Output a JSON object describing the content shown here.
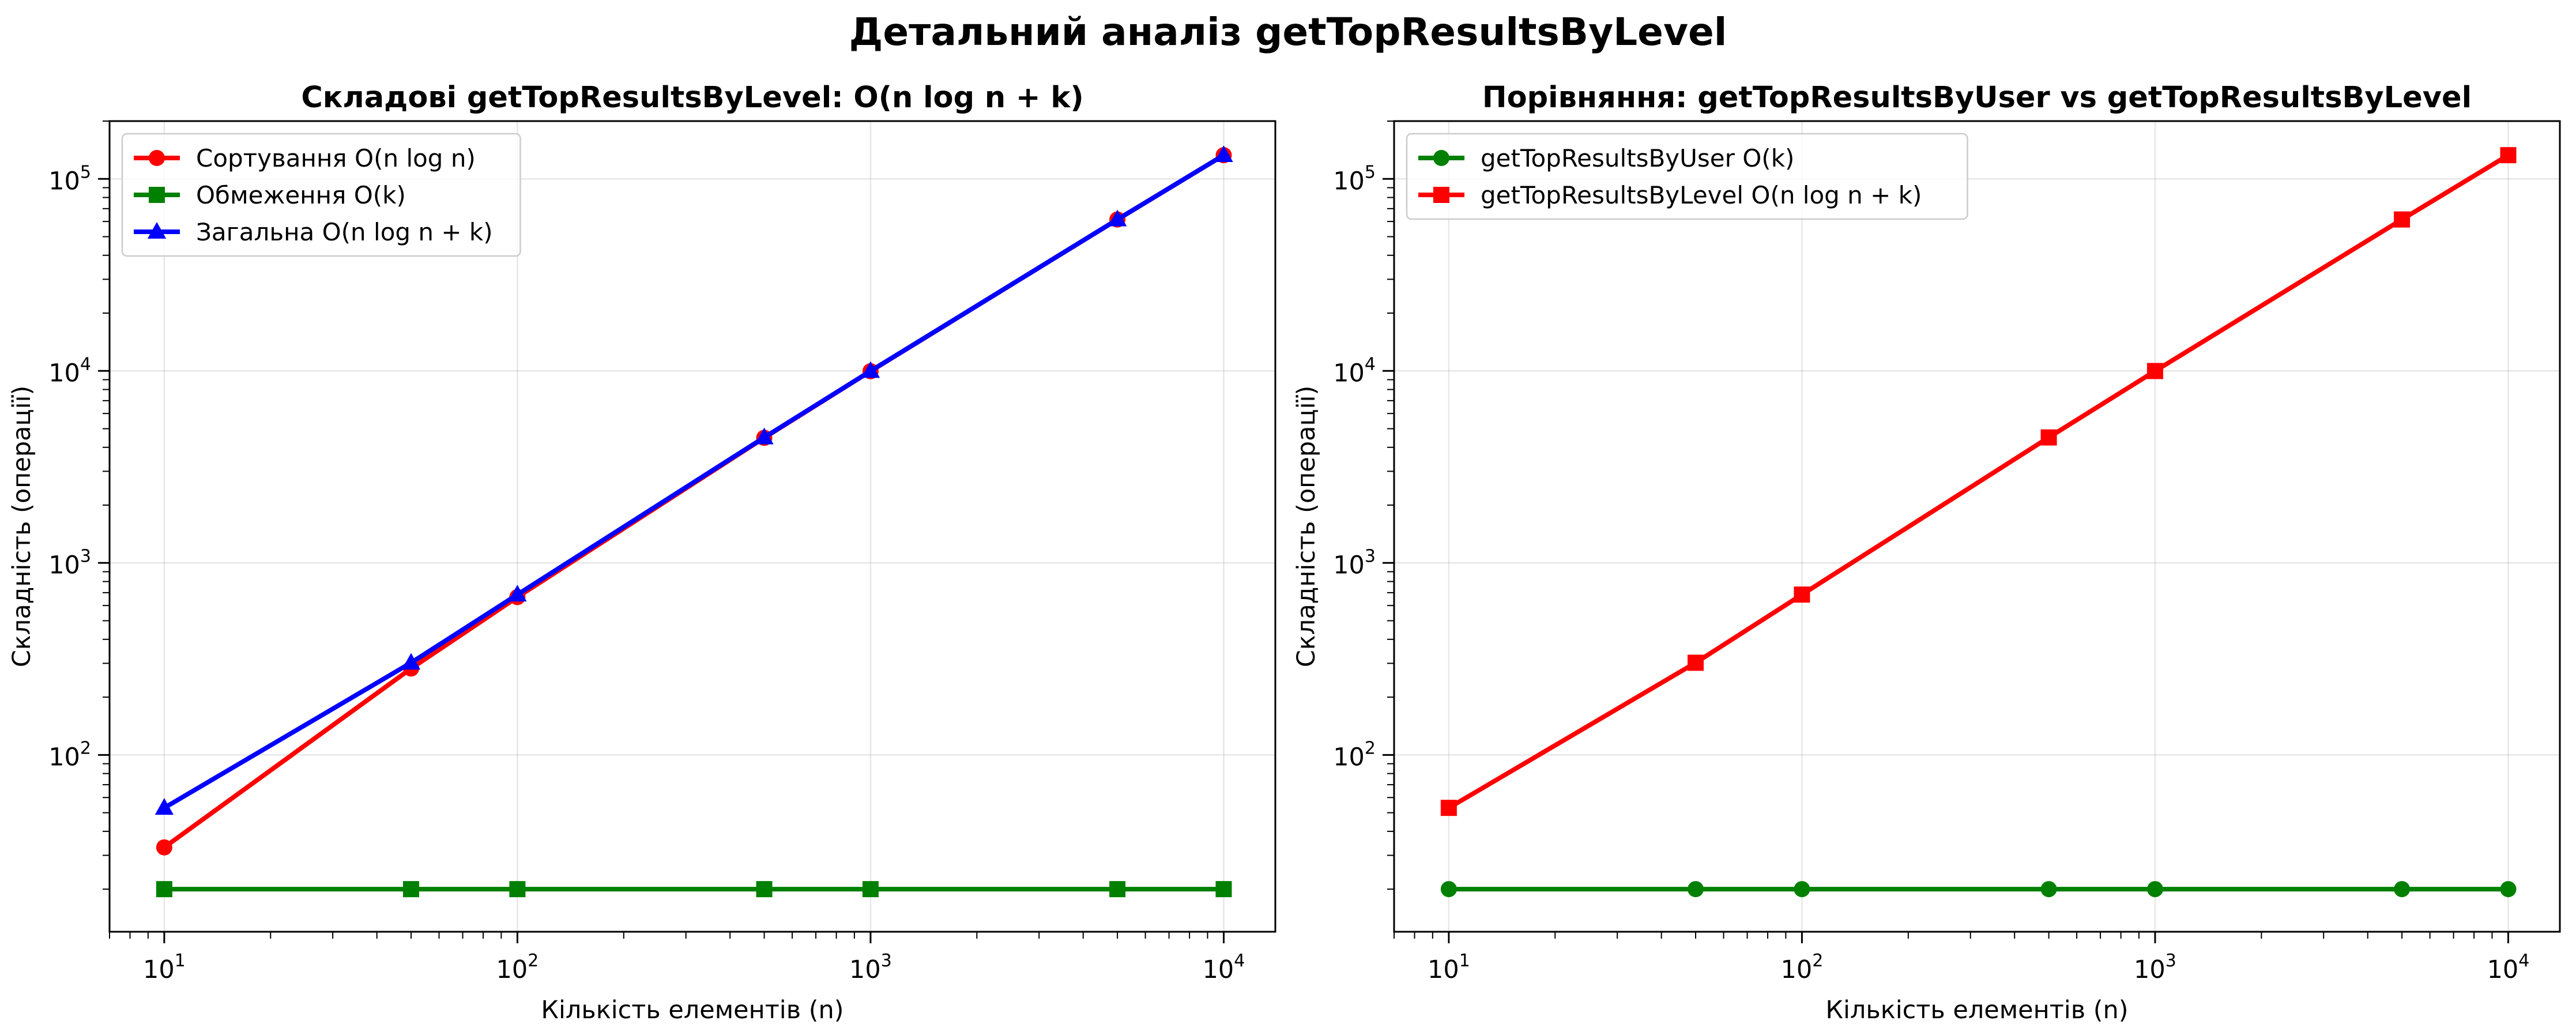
{
  "figure": {
    "suptitle": "Детальний аналіз getTopResultsByLevel"
  },
  "chart_data": [
    {
      "type": "line",
      "title": "Складові getTopResultsByLevel: O(n log n + k)",
      "xlabel": "Кількість елементів (n)",
      "ylabel": "Складність (операції)",
      "xscale": "log",
      "yscale": "log",
      "xlim": [
        7,
        14000
      ],
      "ylim": [
        12,
        200000
      ],
      "grid": true,
      "legend_position": "top-left",
      "x": [
        10,
        50,
        100,
        500,
        1000,
        5000,
        10000
      ],
      "x_ticks": [
        {
          "value": 10,
          "base": "10",
          "exp": "1"
        },
        {
          "value": 100,
          "base": "10",
          "exp": "2"
        },
        {
          "value": 1000,
          "base": "10",
          "exp": "3"
        },
        {
          "value": 10000,
          "base": "10",
          "exp": "4"
        }
      ],
      "y_ticks": [
        {
          "value": 100,
          "base": "10",
          "exp": "2"
        },
        {
          "value": 1000,
          "base": "10",
          "exp": "3"
        },
        {
          "value": 10000,
          "base": "10",
          "exp": "4"
        },
        {
          "value": 100000,
          "base": "10",
          "exp": "5"
        }
      ],
      "series": [
        {
          "name": "Сортування O(n log n)",
          "color": "#ff0000",
          "marker": "circle",
          "values": [
            33,
            282,
            664,
            4483,
            9966,
            61439,
            132877
          ]
        },
        {
          "name": "Обмеження O(k)",
          "color": "#008000",
          "marker": "square",
          "values": [
            20,
            20,
            20,
            20,
            20,
            20,
            20
          ]
        },
        {
          "name": "Загальна O(n log n + k)",
          "color": "#0000ff",
          "marker": "triangle",
          "values": [
            53,
            302,
            684,
            4503,
            9986,
            61459,
            132897
          ]
        }
      ]
    },
    {
      "type": "line",
      "title": "Порівняння: getTopResultsByUser vs getTopResultsByLevel",
      "xlabel": "Кількість елементів (n)",
      "ylabel": "Складність (операції)",
      "xscale": "log",
      "yscale": "log",
      "xlim": [
        7,
        14000
      ],
      "ylim": [
        12,
        200000
      ],
      "grid": true,
      "legend_position": "top-left",
      "x": [
        10,
        50,
        100,
        500,
        1000,
        5000,
        10000
      ],
      "x_ticks": [
        {
          "value": 10,
          "base": "10",
          "exp": "1"
        },
        {
          "value": 100,
          "base": "10",
          "exp": "2"
        },
        {
          "value": 1000,
          "base": "10",
          "exp": "3"
        },
        {
          "value": 10000,
          "base": "10",
          "exp": "4"
        }
      ],
      "y_ticks": [
        {
          "value": 100,
          "base": "10",
          "exp": "2"
        },
        {
          "value": 1000,
          "base": "10",
          "exp": "3"
        },
        {
          "value": 10000,
          "base": "10",
          "exp": "4"
        },
        {
          "value": 100000,
          "base": "10",
          "exp": "5"
        }
      ],
      "series": [
        {
          "name": "getTopResultsByUser O(k)",
          "color": "#008000",
          "marker": "circle",
          "values": [
            20,
            20,
            20,
            20,
            20,
            20,
            20
          ]
        },
        {
          "name": "getTopResultsByLevel O(n log n + k)",
          "color": "#ff0000",
          "marker": "square",
          "values": [
            53,
            302,
            684,
            4503,
            9986,
            61459,
            132897
          ]
        }
      ]
    }
  ]
}
